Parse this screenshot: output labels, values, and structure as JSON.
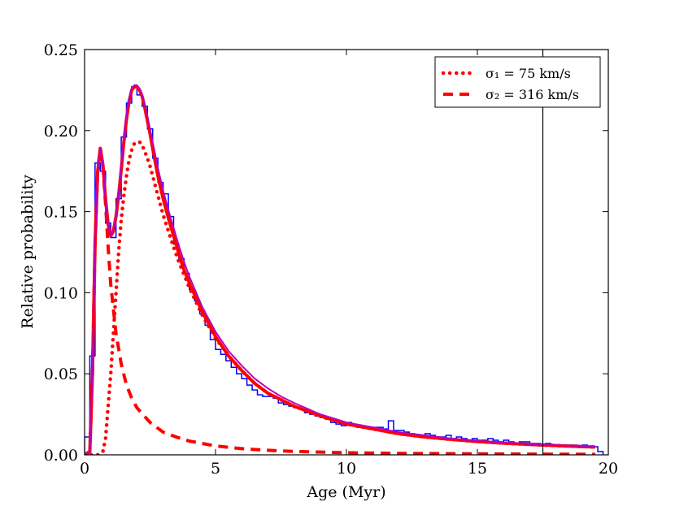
{
  "chart_data": {
    "type": "line",
    "title": "",
    "xlabel": "Age (Myr)",
    "ylabel": "Relative probability",
    "xlim": [
      0,
      20
    ],
    "ylim": [
      0,
      0.25
    ],
    "xticks": [
      0,
      5,
      10,
      15,
      20
    ],
    "xtick_labels": [
      "0",
      "5",
      "10",
      "15",
      "20"
    ],
    "yticks": [
      0.0,
      0.05,
      0.1,
      0.15,
      0.2,
      0.25
    ],
    "ytick_labels": [
      "0.00",
      "0.05",
      "0.10",
      "0.15",
      "0.20",
      "0.25"
    ],
    "legend_position": "top-right",
    "legend": [
      {
        "label": "σ₁ = 75 km/s",
        "series": "sigma1"
      },
      {
        "label": "σ₂ = 316 km/s",
        "series": "sigma2"
      }
    ],
    "vline_x": 17.5,
    "histogram": {
      "name": "histogram",
      "color": "#0000ff",
      "bin_width": 0.2,
      "bin_left": [
        0,
        0.2,
        0.4,
        0.6,
        0.8,
        1.0,
        1.2,
        1.4,
        1.6,
        1.8,
        2.0,
        2.2,
        2.4,
        2.6,
        2.8,
        3.0,
        3.2,
        3.4,
        3.6,
        3.8,
        4.0,
        4.2,
        4.4,
        4.6,
        4.8,
        5.0,
        5.2,
        5.4,
        5.6,
        5.8,
        6.0,
        6.2,
        6.4,
        6.6,
        6.8,
        7.0,
        7.2,
        7.4,
        7.6,
        7.8,
        8.0,
        8.2,
        8.4,
        8.6,
        8.8,
        9.0,
        9.2,
        9.4,
        9.6,
        9.8,
        10.0,
        10.2,
        10.4,
        10.6,
        10.8,
        11.0,
        11.2,
        11.4,
        11.6,
        11.8,
        12.0,
        12.2,
        12.4,
        12.6,
        12.8,
        13.0,
        13.2,
        13.4,
        13.6,
        13.8,
        14.0,
        14.2,
        14.4,
        14.6,
        14.8,
        15.0,
        15.2,
        15.4,
        15.6,
        15.8,
        16.0,
        16.2,
        16.4,
        16.6,
        16.8,
        17.0,
        17.2,
        17.4,
        17.6,
        17.8,
        18.0,
        18.2,
        18.4,
        18.6,
        18.8,
        19.0,
        19.2,
        19.4,
        19.6
      ],
      "values": [
        0.011,
        0.061,
        0.18,
        0.175,
        0.143,
        0.134,
        0.158,
        0.196,
        0.217,
        0.227,
        0.222,
        0.215,
        0.201,
        0.183,
        0.168,
        0.161,
        0.147,
        0.13,
        0.121,
        0.112,
        0.102,
        0.095,
        0.087,
        0.08,
        0.071,
        0.065,
        0.062,
        0.058,
        0.054,
        0.05,
        0.047,
        0.043,
        0.04,
        0.037,
        0.036,
        0.036,
        0.035,
        0.032,
        0.031,
        0.03,
        0.029,
        0.028,
        0.026,
        0.025,
        0.024,
        0.023,
        0.022,
        0.02,
        0.019,
        0.018,
        0.02,
        0.018,
        0.017,
        0.017,
        0.016,
        0.017,
        0.017,
        0.016,
        0.021,
        0.015,
        0.015,
        0.014,
        0.013,
        0.012,
        0.012,
        0.013,
        0.012,
        0.011,
        0.011,
        0.012,
        0.01,
        0.011,
        0.01,
        0.009,
        0.01,
        0.009,
        0.009,
        0.01,
        0.009,
        0.008,
        0.009,
        0.008,
        0.007,
        0.008,
        0.008,
        0.007,
        0.007,
        0.006,
        0.007,
        0.006,
        0.006,
        0.006,
        0.006,
        0.006,
        0.005,
        0.006,
        0.005,
        0.005,
        0.002
      ]
    },
    "series": [
      {
        "name": "combined-fit",
        "color": "#ff0000",
        "style": "solid",
        "x": [
          0,
          0.2,
          0.3,
          0.4,
          0.5,
          0.6,
          0.7,
          0.8,
          0.9,
          1.0,
          1.1,
          1.2,
          1.3,
          1.4,
          1.5,
          1.6,
          1.7,
          1.8,
          1.9,
          2.0,
          2.1,
          2.2,
          2.3,
          2.4,
          2.5,
          2.6,
          2.8,
          3.0,
          3.2,
          3.4,
          3.6,
          3.8,
          4.0,
          4.5,
          5.0,
          5.5,
          6.0,
          6.5,
          7.0,
          7.5,
          8.0,
          9.0,
          10.0,
          11.0,
          12.0,
          13.0,
          14.0,
          15.0,
          16.0,
          17.0,
          18.0,
          19.0,
          19.5
        ],
        "y": [
          0,
          0.002,
          0.05,
          0.13,
          0.175,
          0.189,
          0.179,
          0.158,
          0.142,
          0.135,
          0.138,
          0.147,
          0.16,
          0.176,
          0.193,
          0.207,
          0.218,
          0.225,
          0.227,
          0.227,
          0.225,
          0.221,
          0.214,
          0.206,
          0.198,
          0.189,
          0.172,
          0.158,
          0.146,
          0.135,
          0.124,
          0.114,
          0.106,
          0.088,
          0.073,
          0.061,
          0.052,
          0.044,
          0.038,
          0.034,
          0.03,
          0.024,
          0.019,
          0.016,
          0.013,
          0.011,
          0.0095,
          0.0082,
          0.0072,
          0.0064,
          0.0057,
          0.0051,
          0.0048
        ]
      },
      {
        "name": "sigma1",
        "color": "#ff0000",
        "style": "dotted",
        "x": [
          0,
          0.5,
          0.7,
          0.8,
          0.9,
          1.0,
          1.1,
          1.2,
          1.3,
          1.4,
          1.5,
          1.6,
          1.7,
          1.8,
          1.9,
          2.0,
          2.1,
          2.2,
          2.3,
          2.4,
          2.5,
          2.6,
          2.8,
          3.0,
          3.2,
          3.4,
          3.6,
          3.8,
          4.0,
          4.5,
          5.0,
          5.5,
          6.0,
          6.5,
          7.0,
          7.5,
          8.0,
          9.0,
          10.0,
          11.0,
          12.0,
          13.0,
          14.0,
          15.0,
          16.0,
          17.0,
          18.0,
          19.0,
          19.5
        ],
        "y": [
          0,
          0.0,
          0.002,
          0.01,
          0.03,
          0.05,
          0.075,
          0.1,
          0.125,
          0.145,
          0.16,
          0.172,
          0.182,
          0.188,
          0.192,
          0.193,
          0.193,
          0.191,
          0.187,
          0.183,
          0.178,
          0.172,
          0.16,
          0.148,
          0.138,
          0.128,
          0.119,
          0.111,
          0.103,
          0.086,
          0.072,
          0.061,
          0.052,
          0.044,
          0.038,
          0.034,
          0.03,
          0.024,
          0.019,
          0.016,
          0.013,
          0.011,
          0.0095,
          0.0082,
          0.0072,
          0.0064,
          0.0057,
          0.0051,
          0.0048
        ]
      },
      {
        "name": "sigma2",
        "color": "#ff0000",
        "style": "dashed",
        "x": [
          0,
          0.2,
          0.3,
          0.4,
          0.5,
          0.6,
          0.7,
          0.8,
          0.9,
          1.0,
          1.2,
          1.4,
          1.6,
          1.8,
          2.0,
          2.5,
          3.0,
          3.5,
          4.0,
          5.0,
          6.0,
          7.0,
          8.0,
          10.0,
          12.0,
          14.0,
          16.0,
          18.0,
          19.5
        ],
        "y": [
          0,
          0.002,
          0.05,
          0.13,
          0.175,
          0.189,
          0.178,
          0.155,
          0.128,
          0.105,
          0.075,
          0.056,
          0.043,
          0.035,
          0.029,
          0.02,
          0.014,
          0.011,
          0.0085,
          0.0055,
          0.0038,
          0.0028,
          0.0021,
          0.0013,
          0.0009,
          0.0007,
          0.0005,
          0.0004,
          0.0003
        ]
      },
      {
        "name": "purple-fit",
        "color": "#bb00bb",
        "style": "solid",
        "x": [
          0,
          0.2,
          0.3,
          0.4,
          0.5,
          0.6,
          0.7,
          0.8,
          0.9,
          1.0,
          1.1,
          1.2,
          1.3,
          1.4,
          1.5,
          1.6,
          1.7,
          1.8,
          1.9,
          2.0,
          2.1,
          2.2,
          2.3,
          2.4,
          2.5,
          2.6,
          2.8,
          3.0,
          3.2,
          3.4,
          3.6,
          3.8,
          4.0,
          4.5,
          5.0,
          5.5,
          6.0,
          6.5,
          7.0,
          7.5,
          8.0,
          9.0,
          10.0,
          11.0,
          12.0,
          13.0,
          14.0,
          15.0,
          16.0,
          17.0,
          18.0,
          19.0,
          19.5
        ],
        "y": [
          0,
          0.002,
          0.05,
          0.13,
          0.175,
          0.189,
          0.179,
          0.158,
          0.142,
          0.135,
          0.138,
          0.147,
          0.161,
          0.178,
          0.196,
          0.21,
          0.22,
          0.226,
          0.228,
          0.228,
          0.226,
          0.222,
          0.216,
          0.209,
          0.201,
          0.193,
          0.177,
          0.163,
          0.151,
          0.14,
          0.129,
          0.119,
          0.11,
          0.091,
          0.076,
          0.064,
          0.055,
          0.047,
          0.041,
          0.036,
          0.032,
          0.025,
          0.02,
          0.017,
          0.014,
          0.012,
          0.01,
          0.0087,
          0.0076,
          0.0067,
          0.006,
          0.0054,
          0.0051
        ]
      }
    ]
  }
}
